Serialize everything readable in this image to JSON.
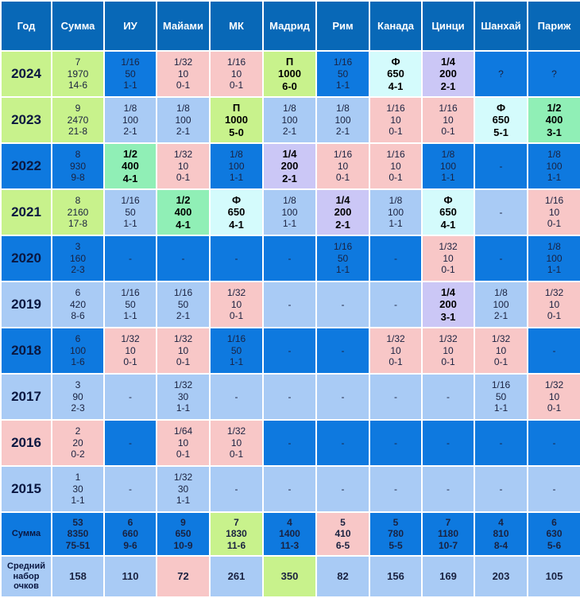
{
  "colors": {
    "header": "#0868b7",
    "strong_blue": "#0e79df",
    "light_blue": "#a9cbf5",
    "pink": "#f8c7c7",
    "lime": "#c8f28c",
    "green": "#90efb6",
    "lavender": "#cbc7f6",
    "cyan": "#d4fbfc"
  },
  "headers": [
    "Год",
    "Сумма",
    "ИУ",
    "Майами",
    "МК",
    "Мадрид",
    "Рим",
    "Канада",
    "Цинци",
    "Шанхай",
    "Париж"
  ],
  "rows": [
    {
      "year": "2024",
      "yearColor": "lime",
      "cells": [
        {
          "lines": [
            "7",
            "1970",
            "14-6"
          ],
          "color": "lime"
        },
        {
          "lines": [
            "1/16",
            "50",
            "1-1"
          ],
          "color": "strong_blue"
        },
        {
          "lines": [
            "1/32",
            "10",
            "0-1"
          ],
          "color": "pink"
        },
        {
          "lines": [
            "1/16",
            "10",
            "0-1"
          ],
          "color": "pink"
        },
        {
          "lines": [
            "П",
            "1000",
            "6-0"
          ],
          "color": "lime",
          "bold": true
        },
        {
          "lines": [
            "1/16",
            "50",
            "1-1"
          ],
          "color": "strong_blue"
        },
        {
          "lines": [
            "Ф",
            "650",
            "4-1"
          ],
          "color": "cyan",
          "bold": true
        },
        {
          "lines": [
            "1/4",
            "200",
            "2-1"
          ],
          "color": "lavender",
          "bold": true
        },
        {
          "lines": [
            "?"
          ],
          "color": "strong_blue"
        },
        {
          "lines": [
            "?"
          ],
          "color": "strong_blue"
        }
      ]
    },
    {
      "year": "2023",
      "yearColor": "lime",
      "cells": [
        {
          "lines": [
            "9",
            "2470",
            "21-8"
          ],
          "color": "lime"
        },
        {
          "lines": [
            "1/8",
            "100",
            "2-1"
          ],
          "color": "light_blue"
        },
        {
          "lines": [
            "1/8",
            "100",
            "2-1"
          ],
          "color": "light_blue"
        },
        {
          "lines": [
            "П",
            "1000",
            "5-0"
          ],
          "color": "lime",
          "bold": true
        },
        {
          "lines": [
            "1/8",
            "100",
            "2-1"
          ],
          "color": "light_blue"
        },
        {
          "lines": [
            "1/8",
            "100",
            "2-1"
          ],
          "color": "light_blue"
        },
        {
          "lines": [
            "1/16",
            "10",
            "0-1"
          ],
          "color": "pink"
        },
        {
          "lines": [
            "1/16",
            "10",
            "0-1"
          ],
          "color": "pink"
        },
        {
          "lines": [
            "Ф",
            "650",
            "5-1"
          ],
          "color": "cyan",
          "bold": true
        },
        {
          "lines": [
            "1/2",
            "400",
            "3-1"
          ],
          "color": "green",
          "bold": true
        }
      ]
    },
    {
      "year": "2022",
      "yearColor": "strong_blue",
      "cells": [
        {
          "lines": [
            "8",
            "930",
            "9-8"
          ],
          "color": "strong_blue"
        },
        {
          "lines": [
            "1/2",
            "400",
            "4-1"
          ],
          "color": "green",
          "bold": true
        },
        {
          "lines": [
            "1/32",
            "10",
            "0-1"
          ],
          "color": "pink"
        },
        {
          "lines": [
            "1/8",
            "100",
            "1-1"
          ],
          "color": "strong_blue"
        },
        {
          "lines": [
            "1/4",
            "200",
            "2-1"
          ],
          "color": "lavender",
          "bold": true
        },
        {
          "lines": [
            "1/16",
            "10",
            "0-1"
          ],
          "color": "pink"
        },
        {
          "lines": [
            "1/16",
            "10",
            "0-1"
          ],
          "color": "pink"
        },
        {
          "lines": [
            "1/8",
            "100",
            "1-1"
          ],
          "color": "strong_blue"
        },
        {
          "lines": [
            "-"
          ],
          "color": "strong_blue"
        },
        {
          "lines": [
            "1/8",
            "100",
            "1-1"
          ],
          "color": "strong_blue"
        }
      ]
    },
    {
      "year": "2021",
      "yearColor": "lime",
      "cells": [
        {
          "lines": [
            "8",
            "2160",
            "17-8"
          ],
          "color": "lime"
        },
        {
          "lines": [
            "1/16",
            "50",
            "1-1"
          ],
          "color": "light_blue"
        },
        {
          "lines": [
            "1/2",
            "400",
            "4-1"
          ],
          "color": "green",
          "bold": true
        },
        {
          "lines": [
            "Ф",
            "650",
            "4-1"
          ],
          "color": "cyan",
          "bold": true
        },
        {
          "lines": [
            "1/8",
            "100",
            "1-1"
          ],
          "color": "light_blue"
        },
        {
          "lines": [
            "1/4",
            "200",
            "2-1"
          ],
          "color": "lavender",
          "bold": true
        },
        {
          "lines": [
            "1/8",
            "100",
            "1-1"
          ],
          "color": "light_blue"
        },
        {
          "lines": [
            "Ф",
            "650",
            "4-1"
          ],
          "color": "cyan",
          "bold": true
        },
        {
          "lines": [
            "-"
          ],
          "color": "light_blue"
        },
        {
          "lines": [
            "1/16",
            "10",
            "0-1"
          ],
          "color": "pink"
        }
      ]
    },
    {
      "year": "2020",
      "yearColor": "strong_blue",
      "cells": [
        {
          "lines": [
            "3",
            "160",
            "2-3"
          ],
          "color": "strong_blue"
        },
        {
          "lines": [
            "-"
          ],
          "color": "strong_blue"
        },
        {
          "lines": [
            "-"
          ],
          "color": "strong_blue"
        },
        {
          "lines": [
            "-"
          ],
          "color": "strong_blue"
        },
        {
          "lines": [
            "-"
          ],
          "color": "strong_blue"
        },
        {
          "lines": [
            "1/16",
            "50",
            "1-1"
          ],
          "color": "strong_blue"
        },
        {
          "lines": [
            "-"
          ],
          "color": "strong_blue"
        },
        {
          "lines": [
            "1/32",
            "10",
            "0-1"
          ],
          "color": "pink"
        },
        {
          "lines": [
            "-"
          ],
          "color": "strong_blue"
        },
        {
          "lines": [
            "1/8",
            "100",
            "1-1"
          ],
          "color": "strong_blue"
        }
      ]
    },
    {
      "year": "2019",
      "yearColor": "light_blue",
      "cells": [
        {
          "lines": [
            "6",
            "420",
            "8-6"
          ],
          "color": "light_blue"
        },
        {
          "lines": [
            "1/16",
            "50",
            "1-1"
          ],
          "color": "light_blue"
        },
        {
          "lines": [
            "1/16",
            "50",
            "2-1"
          ],
          "color": "light_blue"
        },
        {
          "lines": [
            "1/32",
            "10",
            "0-1"
          ],
          "color": "pink"
        },
        {
          "lines": [
            "-"
          ],
          "color": "light_blue"
        },
        {
          "lines": [
            "-"
          ],
          "color": "light_blue"
        },
        {
          "lines": [
            "-"
          ],
          "color": "light_blue"
        },
        {
          "lines": [
            "1/4",
            "200",
            "3-1"
          ],
          "color": "lavender",
          "bold": true
        },
        {
          "lines": [
            "1/8",
            "100",
            "2-1"
          ],
          "color": "light_blue"
        },
        {
          "lines": [
            "1/32",
            "10",
            "0-1"
          ],
          "color": "pink"
        }
      ]
    },
    {
      "year": "2018",
      "yearColor": "strong_blue",
      "cells": [
        {
          "lines": [
            "6",
            "100",
            "1-6"
          ],
          "color": "strong_blue"
        },
        {
          "lines": [
            "1/32",
            "10",
            "0-1"
          ],
          "color": "pink"
        },
        {
          "lines": [
            "1/32",
            "10",
            "0-1"
          ],
          "color": "pink"
        },
        {
          "lines": [
            "1/16",
            "50",
            "1-1"
          ],
          "color": "strong_blue"
        },
        {
          "lines": [
            "-"
          ],
          "color": "strong_blue"
        },
        {
          "lines": [
            "-"
          ],
          "color": "strong_blue"
        },
        {
          "lines": [
            "1/32",
            "10",
            "0-1"
          ],
          "color": "pink"
        },
        {
          "lines": [
            "1/32",
            "10",
            "0-1"
          ],
          "color": "pink"
        },
        {
          "lines": [
            "1/32",
            "10",
            "0-1"
          ],
          "color": "pink"
        },
        {
          "lines": [
            "-"
          ],
          "color": "strong_blue"
        }
      ]
    },
    {
      "year": "2017",
      "yearColor": "light_blue",
      "cells": [
        {
          "lines": [
            "3",
            "90",
            "2-3"
          ],
          "color": "light_blue"
        },
        {
          "lines": [
            "-"
          ],
          "color": "light_blue"
        },
        {
          "lines": [
            "1/32",
            "30",
            "1-1"
          ],
          "color": "light_blue"
        },
        {
          "lines": [
            "-"
          ],
          "color": "light_blue"
        },
        {
          "lines": [
            "-"
          ],
          "color": "light_blue"
        },
        {
          "lines": [
            "-"
          ],
          "color": "light_blue"
        },
        {
          "lines": [
            "-"
          ],
          "color": "light_blue"
        },
        {
          "lines": [
            "-"
          ],
          "color": "light_blue"
        },
        {
          "lines": [
            "1/16",
            "50",
            "1-1"
          ],
          "color": "light_blue"
        },
        {
          "lines": [
            "1/32",
            "10",
            "0-1"
          ],
          "color": "pink"
        }
      ]
    },
    {
      "year": "2016",
      "yearColor": "pink",
      "cells": [
        {
          "lines": [
            "2",
            "20",
            "0-2"
          ],
          "color": "pink"
        },
        {
          "lines": [
            "-"
          ],
          "color": "strong_blue"
        },
        {
          "lines": [
            "1/64",
            "10",
            "0-1"
          ],
          "color": "pink"
        },
        {
          "lines": [
            "1/32",
            "10",
            "0-1"
          ],
          "color": "pink"
        },
        {
          "lines": [
            "-"
          ],
          "color": "strong_blue"
        },
        {
          "lines": [
            "-"
          ],
          "color": "strong_blue"
        },
        {
          "lines": [
            "-"
          ],
          "color": "strong_blue"
        },
        {
          "lines": [
            "-"
          ],
          "color": "strong_blue"
        },
        {
          "lines": [
            "-"
          ],
          "color": "strong_blue"
        },
        {
          "lines": [
            "-"
          ],
          "color": "strong_blue"
        }
      ]
    },
    {
      "year": "2015",
      "yearColor": "light_blue",
      "cells": [
        {
          "lines": [
            "1",
            "30",
            "1-1"
          ],
          "color": "light_blue"
        },
        {
          "lines": [
            "-"
          ],
          "color": "light_blue"
        },
        {
          "lines": [
            "1/32",
            "30",
            "1-1"
          ],
          "color": "light_blue"
        },
        {
          "lines": [
            "-"
          ],
          "color": "light_blue"
        },
        {
          "lines": [
            "-"
          ],
          "color": "light_blue"
        },
        {
          "lines": [
            "-"
          ],
          "color": "light_blue"
        },
        {
          "lines": [
            "-"
          ],
          "color": "light_blue"
        },
        {
          "lines": [
            "-"
          ],
          "color": "light_blue"
        },
        {
          "lines": [
            "-"
          ],
          "color": "light_blue"
        },
        {
          "lines": [
            "-"
          ],
          "color": "light_blue"
        }
      ]
    }
  ],
  "sum_row": {
    "label": "Сумма",
    "labelColor": "strong_blue",
    "cells": [
      {
        "lines": [
          "53",
          "8350",
          "75-51"
        ],
        "color": "strong_blue"
      },
      {
        "lines": [
          "6",
          "660",
          "9-6"
        ],
        "color": "strong_blue"
      },
      {
        "lines": [
          "9",
          "650",
          "10-9"
        ],
        "color": "strong_blue"
      },
      {
        "lines": [
          "7",
          "1830",
          "11-6"
        ],
        "color": "lime"
      },
      {
        "lines": [
          "4",
          "1400",
          "11-3"
        ],
        "color": "strong_blue"
      },
      {
        "lines": [
          "5",
          "410",
          "6-5"
        ],
        "color": "pink"
      },
      {
        "lines": [
          "5",
          "780",
          "5-5"
        ],
        "color": "strong_blue"
      },
      {
        "lines": [
          "7",
          "1180",
          "10-7"
        ],
        "color": "strong_blue"
      },
      {
        "lines": [
          "4",
          "810",
          "8-4"
        ],
        "color": "strong_blue"
      },
      {
        "lines": [
          "6",
          "630",
          "5-6"
        ],
        "color": "strong_blue"
      }
    ]
  },
  "avg_row": {
    "label_lines": [
      "Средний",
      "набор",
      "очков"
    ],
    "labelColor": "light_blue",
    "cells": [
      {
        "value": "158",
        "color": "light_blue"
      },
      {
        "value": "110",
        "color": "light_blue"
      },
      {
        "value": "72",
        "color": "pink"
      },
      {
        "value": "261",
        "color": "light_blue"
      },
      {
        "value": "350",
        "color": "lime"
      },
      {
        "value": "82",
        "color": "light_blue"
      },
      {
        "value": "156",
        "color": "light_blue"
      },
      {
        "value": "169",
        "color": "light_blue"
      },
      {
        "value": "203",
        "color": "light_blue"
      },
      {
        "value": "105",
        "color": "light_blue"
      }
    ]
  }
}
